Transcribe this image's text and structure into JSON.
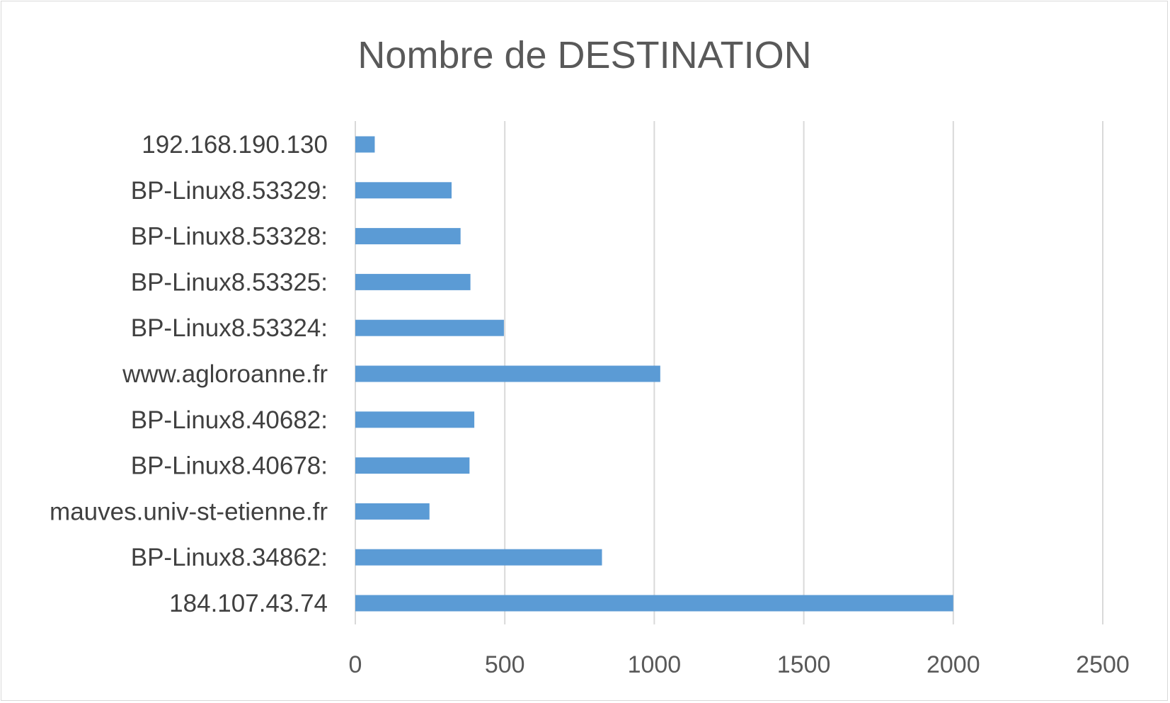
{
  "chart_data": {
    "type": "bar",
    "orientation": "horizontal",
    "title": "Nombre de DESTINATION",
    "xlabel": "",
    "ylabel": "",
    "categories": [
      "192.168.190.130",
      "BP-Linux8.53329:",
      "BP-Linux8.53328:",
      "BP-Linux8.53325:",
      "BP-Linux8.53324:",
      "www.agloroanne.fr",
      "BP-Linux8.40682:",
      "BP-Linux8.40678:",
      "mauves.univ-st-etienne.fr",
      "BP-Linux8.34862:",
      "184.107.43.74"
    ],
    "values": [
      65,
      322,
      352,
      385,
      497,
      1020,
      398,
      382,
      248,
      825,
      2000
    ],
    "xlim": [
      0,
      2500
    ],
    "xticks": [
      "0",
      "500",
      "1000",
      "1500",
      "2000",
      "2500"
    ],
    "grid": "vertical",
    "legend": "none",
    "bar_color": "#5b9bd5",
    "grid_color": "#d9d9d9"
  }
}
